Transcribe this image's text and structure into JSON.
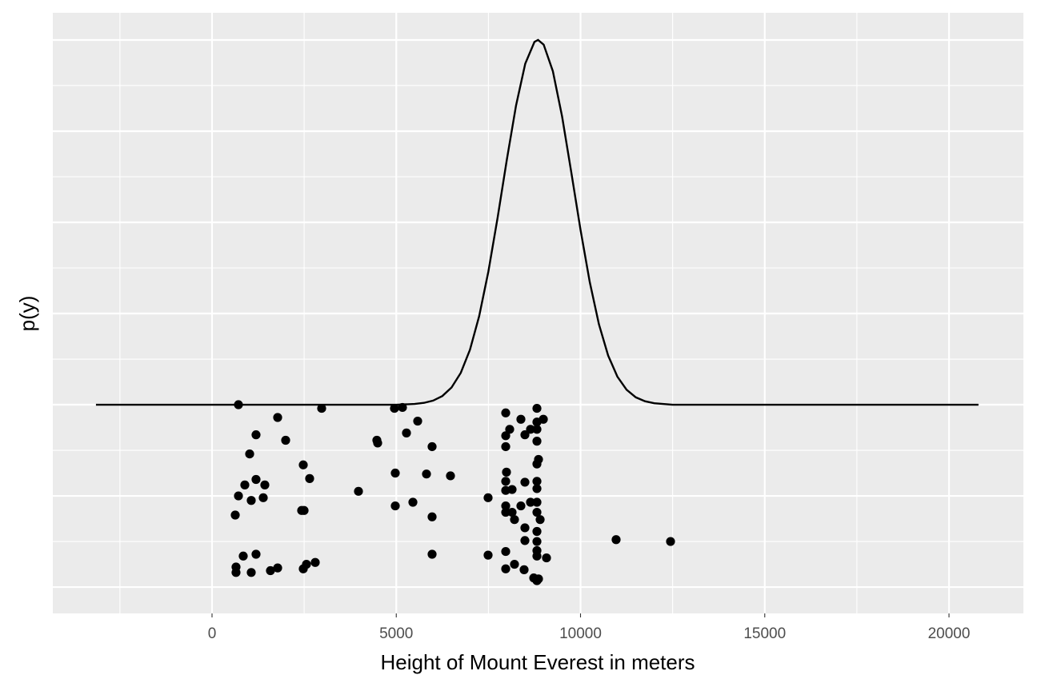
{
  "chart_data": {
    "type": "scatter",
    "x_label": "Height of Mount Everest in meters",
    "y_label": "p(y)",
    "xlim": [
      -4321,
      22019
    ],
    "ylim": [
      -2.289,
      4.298
    ],
    "xticks": [
      0,
      5000,
      10000,
      15000,
      20000
    ],
    "yticks": [
      -2,
      -1,
      0,
      1,
      2,
      3,
      4
    ],
    "grid": true,
    "series": [
      {
        "type": "line",
        "color": "#000000",
        "x": [
          -3150,
          5000,
          5500,
          5750,
          6000,
          6250,
          6500,
          6750,
          7000,
          7250,
          7500,
          7750,
          8000,
          8250,
          8500,
          8750,
          8848,
          9000,
          9250,
          9500,
          9750,
          10000,
          10250,
          10500,
          10750,
          11000,
          11250,
          11500,
          11750,
          12000,
          12500,
          20800
        ],
        "values": [
          0,
          0,
          0.008,
          0.02,
          0.045,
          0.095,
          0.189,
          0.349,
          0.603,
          0.972,
          1.462,
          2.051,
          2.686,
          3.281,
          3.74,
          3.979,
          4.0,
          3.949,
          3.657,
          3.161,
          2.548,
          1.918,
          1.346,
          0.882,
          0.539,
          0.308,
          0.164,
          0.081,
          0.038,
          0.016,
          0,
          0
        ]
      },
      {
        "type": "scatter",
        "color": "#000000",
        "x": [
          717,
          1781,
          1194,
          1998,
          1021,
          2476,
          2649,
          890,
          1194,
          1433,
          717,
          1064,
          1390,
          2432,
          2498,
          630,
          847,
          1194,
          651,
          651,
          1064,
          1585,
          1781,
          2476,
          2563,
          2801,
          2975,
          4951,
          5168,
          5581,
          5277,
          4473,
          4495,
          5972,
          3974,
          4973,
          5820,
          6471,
          5451,
          4973,
          5972,
          5972,
          7492,
          7492,
          7970,
          8078,
          7970,
          7970,
          8382,
          8491,
          8643,
          8817,
          8817,
          8991,
          8817,
          8817,
          8860,
          8817,
          7991,
          7970,
          7970,
          8143,
          8491,
          8817,
          8817,
          7970,
          7970,
          8143,
          8382,
          8643,
          8817,
          8817,
          8904,
          8208,
          8491,
          8817,
          8817,
          8491,
          7970,
          8817,
          8817,
          9077,
          8208,
          7970,
          8469,
          8730,
          8860,
          8817,
          10966,
          12443
        ],
        "values": [
          0,
          -0.14,
          -0.33,
          -0.39,
          -0.54,
          -0.66,
          -0.81,
          -0.88,
          -0.82,
          -0.88,
          -1.0,
          -1.05,
          -1.02,
          -1.16,
          -1.16,
          -1.21,
          -1.66,
          -1.64,
          -1.78,
          -1.84,
          -1.84,
          -1.82,
          -1.79,
          -1.8,
          -1.75,
          -1.73,
          -0.04,
          -0.04,
          -0.03,
          -0.18,
          -0.31,
          -0.39,
          -0.42,
          -0.46,
          -0.95,
          -0.75,
          -0.76,
          -0.78,
          -1.07,
          -1.11,
          -1.23,
          -1.64,
          -1.02,
          -1.65,
          -0.09,
          -0.27,
          -0.34,
          -0.46,
          -0.16,
          -0.33,
          -0.27,
          -0.04,
          -0.19,
          -0.16,
          -0.27,
          -0.4,
          -0.6,
          -0.65,
          -0.74,
          -0.84,
          -0.94,
          -0.93,
          -0.85,
          -0.84,
          -0.92,
          -1.11,
          -1.18,
          -1.18,
          -1.11,
          -1.07,
          -1.07,
          -1.18,
          -1.26,
          -1.26,
          -1.35,
          -1.39,
          -1.5,
          -1.49,
          -1.61,
          -1.6,
          -1.66,
          -1.68,
          -1.75,
          -1.8,
          -1.81,
          -1.9,
          -1.91,
          -1.93,
          -1.48,
          -1.5
        ]
      }
    ]
  }
}
